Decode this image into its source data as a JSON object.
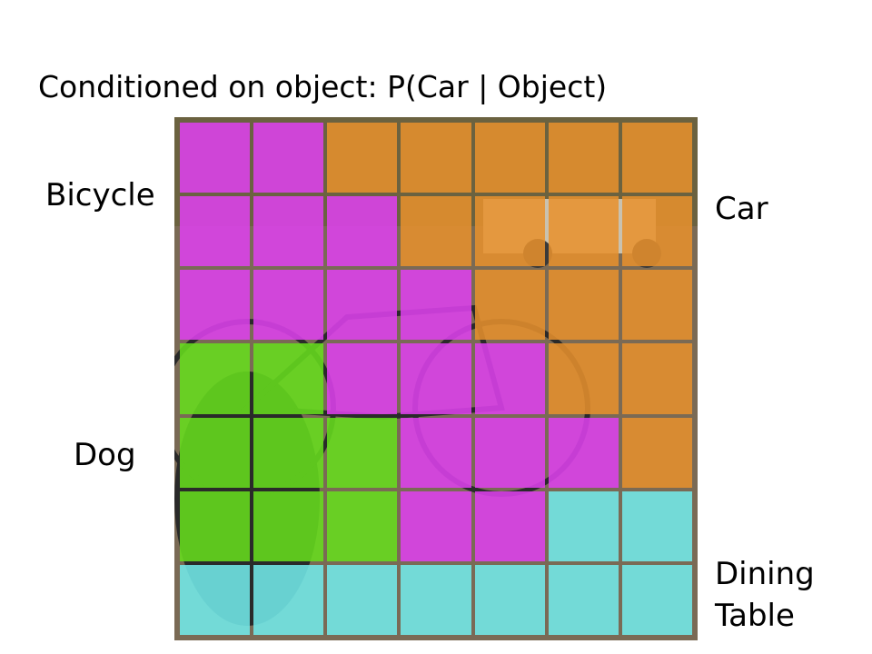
{
  "title": "Conditioned on object: P(Car | Object)",
  "labels": {
    "bicycle": "Bicycle",
    "car": "Car",
    "dog": "Dog",
    "dining_table": "Dining\nTable"
  },
  "classes": {
    "bicycle": {
      "color": "#e040f0"
    },
    "car": {
      "color": "#e8902c"
    },
    "dog": {
      "color": "#66e01c"
    },
    "dining_table": {
      "color": "#72ecec"
    }
  },
  "grid": {
    "rows": 7,
    "cols": 7,
    "cells": [
      [
        "bicycle",
        "bicycle",
        "car",
        "car",
        "car",
        "car",
        "car"
      ],
      [
        "bicycle",
        "bicycle",
        "bicycle",
        "car",
        "car",
        "car",
        "car"
      ],
      [
        "bicycle",
        "bicycle",
        "bicycle",
        "bicycle",
        "car",
        "car",
        "car"
      ],
      [
        "dog",
        "dog",
        "bicycle",
        "bicycle",
        "bicycle",
        "car",
        "car"
      ],
      [
        "dog",
        "dog",
        "dog",
        "bicycle",
        "bicycle",
        "bicycle",
        "car"
      ],
      [
        "dog",
        "dog",
        "dog",
        "bicycle",
        "bicycle",
        "dining_table",
        "dining_table"
      ],
      [
        "dining_table",
        "dining_table",
        "dining_table",
        "dining_table",
        "dining_table",
        "dining_table",
        "dining_table"
      ]
    ]
  }
}
